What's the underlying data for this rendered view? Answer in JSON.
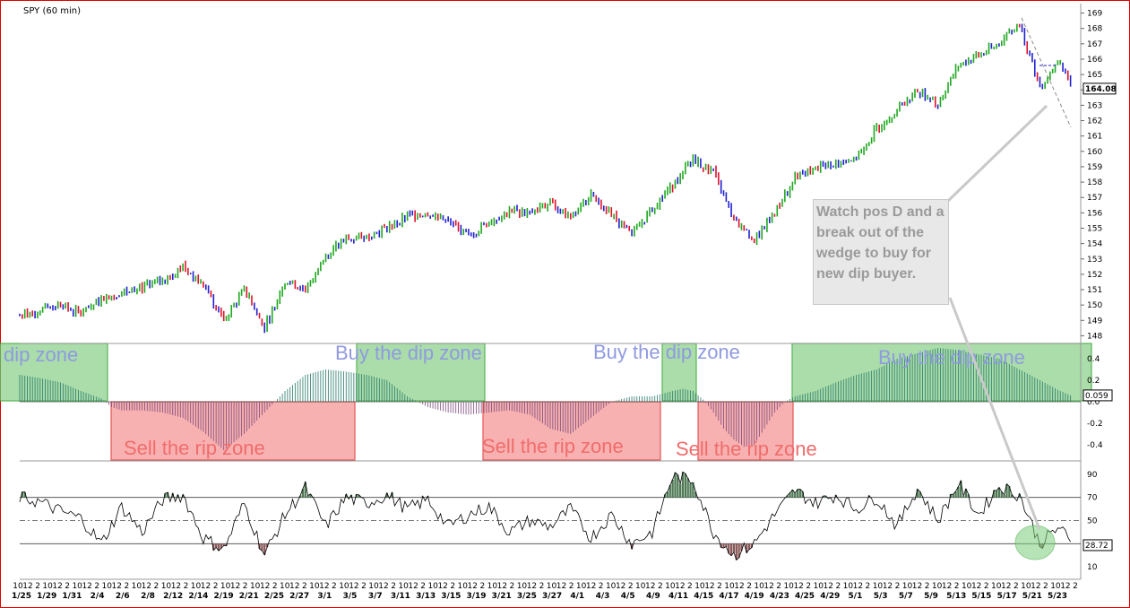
{
  "chart_title": "SPY (60 min)",
  "annotation": "Watch pos D and a break out of the wedge to buy for new dip buyer.",
  "colors": {
    "up_bar": "#1fa81f",
    "down_bar": "#e0102a",
    "neutral_bar": "#2020d0",
    "buy_zone": "#9cd89c",
    "sell_zone": "#f7a4a4",
    "osc_buy": "#2a7a6a",
    "osc_sell": "#7a4a7a",
    "frame": "#e00000"
  },
  "chart_data": [
    {
      "type": "line",
      "title": "SPY (60 min)",
      "panel": "price",
      "ylim": [
        147.5,
        169.5
      ],
      "yticks": [
        148,
        149,
        150,
        151,
        152,
        153,
        154,
        155,
        156,
        157,
        158,
        159,
        160,
        161,
        162,
        163,
        164,
        165,
        166,
        167,
        168,
        169
      ],
      "last_value": "164.08",
      "x": [
        0,
        4,
        8,
        12,
        16,
        20,
        24,
        28,
        32,
        36,
        40,
        44,
        48,
        52,
        56,
        60,
        64,
        68,
        72,
        76,
        80,
        84,
        88,
        92,
        96,
        100,
        104,
        108,
        112,
        116,
        120,
        124,
        128,
        132,
        136,
        140,
        144,
        148,
        152,
        156,
        160,
        164,
        168,
        172,
        176,
        180,
        184,
        188,
        192,
        196,
        200,
        204,
        206
      ],
      "values": [
        149.3,
        149.7,
        150.0,
        149.4,
        150.4,
        150.8,
        151.1,
        151.6,
        152.5,
        151.2,
        149.0,
        151.0,
        148.5,
        151.6,
        151.0,
        153.2,
        154.3,
        154.5,
        155.0,
        155.8,
        156.0,
        155.4,
        154.5,
        155.4,
        156.1,
        156.0,
        156.6,
        155.8,
        157.2,
        156.0,
        154.5,
        156.3,
        157.8,
        159.5,
        158.6,
        155.5,
        154.2,
        156.0,
        158.3,
        158.9,
        159.2,
        159.6,
        161.5,
        162.7,
        163.9,
        163.1,
        165.6,
        166.2,
        167.0,
        168.3,
        164.2,
        166.0,
        164.3
      ],
      "notes": "x is hourly bar index; values approximate closes read from the price axis"
    },
    {
      "type": "bar",
      "panel": "oscillator",
      "ylim": [
        -0.55,
        0.55
      ],
      "yticks": [
        "0.4",
        "0.2",
        "0.0",
        "-0.2",
        "-0.4"
      ],
      "last_value": "0.059",
      "x": [
        0,
        4,
        8,
        12,
        16,
        18,
        20,
        24,
        28,
        32,
        36,
        40,
        44,
        48,
        52,
        56,
        60,
        64,
        68,
        72,
        76,
        80,
        84,
        88,
        92,
        96,
        100,
        104,
        108,
        112,
        116,
        120,
        124,
        128,
        130,
        132,
        134,
        136,
        138,
        140,
        142,
        144,
        146,
        148,
        150,
        152,
        156,
        160,
        164,
        168,
        172,
        176,
        180,
        184,
        188,
        192,
        196,
        200,
        204,
        206
      ],
      "values": [
        0.25,
        0.22,
        0.18,
        0.1,
        0.03,
        -0.05,
        -0.08,
        -0.08,
        -0.1,
        -0.15,
        -0.28,
        -0.45,
        -0.3,
        -0.1,
        0.1,
        0.25,
        0.3,
        0.28,
        0.25,
        0.2,
        0.05,
        -0.05,
        -0.1,
        -0.12,
        -0.1,
        -0.08,
        -0.12,
        -0.25,
        -0.3,
        -0.15,
        0.0,
        0.05,
        0.05,
        0.1,
        0.12,
        0.1,
        0.02,
        -0.1,
        -0.25,
        -0.35,
        -0.42,
        -0.4,
        -0.25,
        -0.1,
        0.0,
        0.05,
        0.1,
        0.18,
        0.25,
        0.3,
        0.4,
        0.45,
        0.5,
        0.48,
        0.44,
        0.4,
        0.3,
        0.2,
        0.1,
        0.059
      ],
      "series": [
        {
          "name": "Buy the dip zone"
        },
        {
          "name": "Sell the rip zone"
        }
      ]
    },
    {
      "type": "line",
      "panel": "rsi",
      "ylim": [
        0,
        100
      ],
      "yticks": [
        "90",
        "70",
        "50",
        "30",
        "10"
      ],
      "reference_lines": [
        70,
        50,
        30
      ],
      "last_value": "28.72",
      "x": [
        0,
        4,
        8,
        12,
        16,
        20,
        24,
        28,
        32,
        36,
        40,
        44,
        48,
        52,
        56,
        60,
        64,
        68,
        72,
        76,
        80,
        84,
        88,
        92,
        96,
        100,
        104,
        108,
        112,
        116,
        120,
        124,
        128,
        132,
        136,
        140,
        144,
        148,
        152,
        156,
        160,
        164,
        168,
        172,
        176,
        180,
        184,
        188,
        192,
        196,
        200,
        204,
        206
      ],
      "values": [
        70,
        66,
        58,
        52,
        30,
        62,
        40,
        68,
        72,
        35,
        25,
        65,
        20,
        55,
        78,
        45,
        70,
        65,
        72,
        60,
        68,
        45,
        55,
        62,
        40,
        50,
        45,
        60,
        35,
        55,
        30,
        40,
        88,
        85,
        40,
        20,
        30,
        55,
        76,
        65,
        72,
        60,
        70,
        45,
        78,
        50,
        82,
        55,
        80,
        72,
        30,
        45,
        28.72
      ]
    }
  ],
  "zones": [
    {
      "label": "dip zone",
      "kind": "buy"
    },
    {
      "label": "Buy the dip zone",
      "kind": "buy"
    },
    {
      "label": "Buy the dip zone",
      "kind": "buy"
    },
    {
      "label": "Buy the dip zone",
      "kind": "buy"
    },
    {
      "label": "Sell the rip zone",
      "kind": "sell"
    },
    {
      "label": "Sell the rip zone",
      "kind": "sell"
    },
    {
      "label": "Sell the rip zone",
      "kind": "sell"
    }
  ],
  "x_axis": {
    "hours": [
      "10",
      "12",
      "2",
      "10",
      "12",
      "2",
      "10",
      "12",
      "2",
      "10",
      "12",
      "2",
      "10",
      "12",
      "2",
      "10",
      "12",
      "2",
      "10",
      "12",
      "2",
      "10",
      "12",
      "2",
      "10",
      "12",
      "2",
      "10",
      "12",
      "2",
      "10",
      "12",
      "2",
      "10",
      "12",
      "2",
      "10",
      "12",
      "2",
      "10",
      "12",
      "2",
      "10",
      "12",
      "2",
      "10",
      "12",
      "2",
      "10",
      "12",
      "2",
      "10",
      "12",
      "2",
      "10",
      "12",
      "2",
      "10",
      "12",
      "2",
      "10",
      "12",
      "2",
      "10",
      "12",
      "2",
      "10",
      "12",
      "2",
      "10",
      "12",
      "2",
      "10",
      "12",
      "2",
      "10",
      "12",
      "2",
      "10",
      "12",
      "2",
      "10",
      "12",
      "2",
      "10",
      "12",
      "2",
      "10",
      "12",
      "2",
      "10",
      "12",
      "2",
      "10",
      "12",
      "2",
      "10",
      "12",
      "2",
      "10",
      "12",
      "2",
      "10",
      "12",
      "2",
      "10",
      "12",
      "2"
    ],
    "dates": [
      "1/25",
      "1/29",
      "1/31",
      "2/4",
      "2/6",
      "2/8",
      "2/12",
      "2/14",
      "2/19",
      "2/21",
      "2/25",
      "2/27",
      "3/1",
      "3/5",
      "3/7",
      "3/11",
      "3/13",
      "3/15",
      "3/19",
      "3/21",
      "3/25",
      "3/27",
      "4/1",
      "4/3",
      "4/5",
      "4/9",
      "4/11",
      "4/15",
      "4/17",
      "4/19",
      "4/23",
      "4/25",
      "4/29",
      "5/1",
      "5/3",
      "5/7",
      "5/9",
      "5/13",
      "5/15",
      "5/17",
      "5/21",
      "5/23"
    ]
  }
}
